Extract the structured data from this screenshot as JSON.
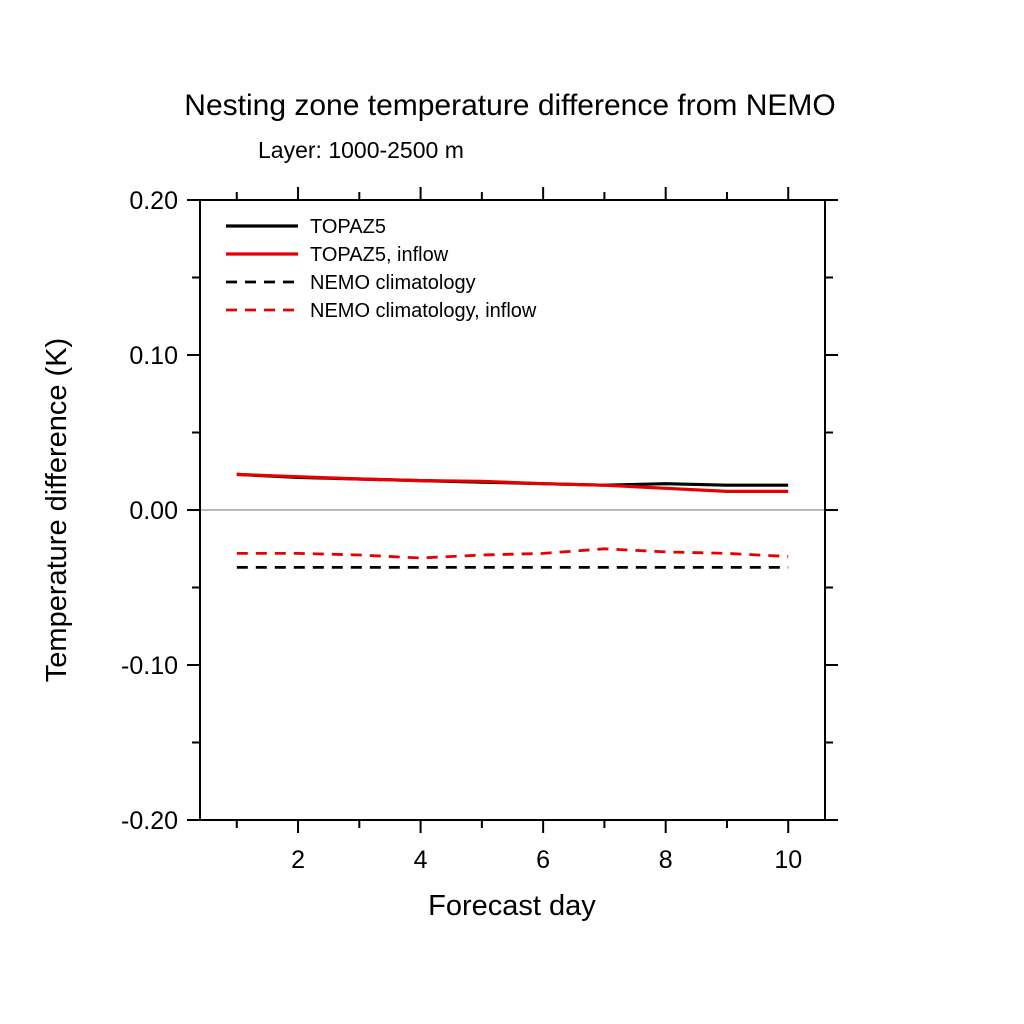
{
  "chart_data": {
    "type": "line",
    "title": "Nesting zone temperature difference from NEMO",
    "subtitle": "Layer: 1000-2500 m",
    "xlabel": "Forecast day",
    "ylabel": "Temperature difference (K)",
    "x": [
      1,
      2,
      3,
      4,
      5,
      6,
      7,
      8,
      9,
      10
    ],
    "xlim": [
      0.4,
      10.6
    ],
    "ylim": [
      -0.2,
      0.2
    ],
    "xticks": {
      "major": [
        2,
        4,
        6,
        8,
        10
      ],
      "minor": [
        1,
        3,
        5,
        7,
        9
      ],
      "labels": [
        "2",
        "4",
        "6",
        "8",
        "10"
      ]
    },
    "yticks": {
      "major": [
        -0.2,
        -0.1,
        0.0,
        0.1,
        0.2
      ],
      "minor": [
        -0.15,
        -0.05,
        0.05,
        0.15
      ],
      "labels": [
        "-0.20",
        "-0.10",
        "0.00",
        "0.10",
        "0.20"
      ]
    },
    "zero_line": {
      "y": 0.0,
      "color": "#a0a0a0"
    },
    "legend_position": "top-left-inside",
    "grid": false,
    "series": [
      {
        "name": "TOPAZ5",
        "color": "#000000",
        "style": "solid",
        "values": [
          0.023,
          0.021,
          0.02,
          0.019,
          0.018,
          0.017,
          0.016,
          0.017,
          0.016,
          0.016
        ]
      },
      {
        "name": "TOPAZ5, inflow",
        "color": "#e80000",
        "style": "solid",
        "values": [
          0.023,
          0.0215,
          0.02,
          0.019,
          0.0185,
          0.017,
          0.016,
          0.014,
          0.012,
          0.012
        ]
      },
      {
        "name": "NEMO climatology",
        "color": "#000000",
        "style": "dashed",
        "values": [
          -0.037,
          -0.037,
          -0.037,
          -0.037,
          -0.037,
          -0.037,
          -0.037,
          -0.037,
          -0.037,
          -0.037
        ]
      },
      {
        "name": "NEMO climatology, inflow",
        "color": "#e80000",
        "style": "dashed",
        "values": [
          -0.028,
          -0.028,
          -0.029,
          -0.031,
          -0.029,
          -0.028,
          -0.025,
          -0.027,
          -0.028,
          -0.03
        ]
      }
    ]
  }
}
